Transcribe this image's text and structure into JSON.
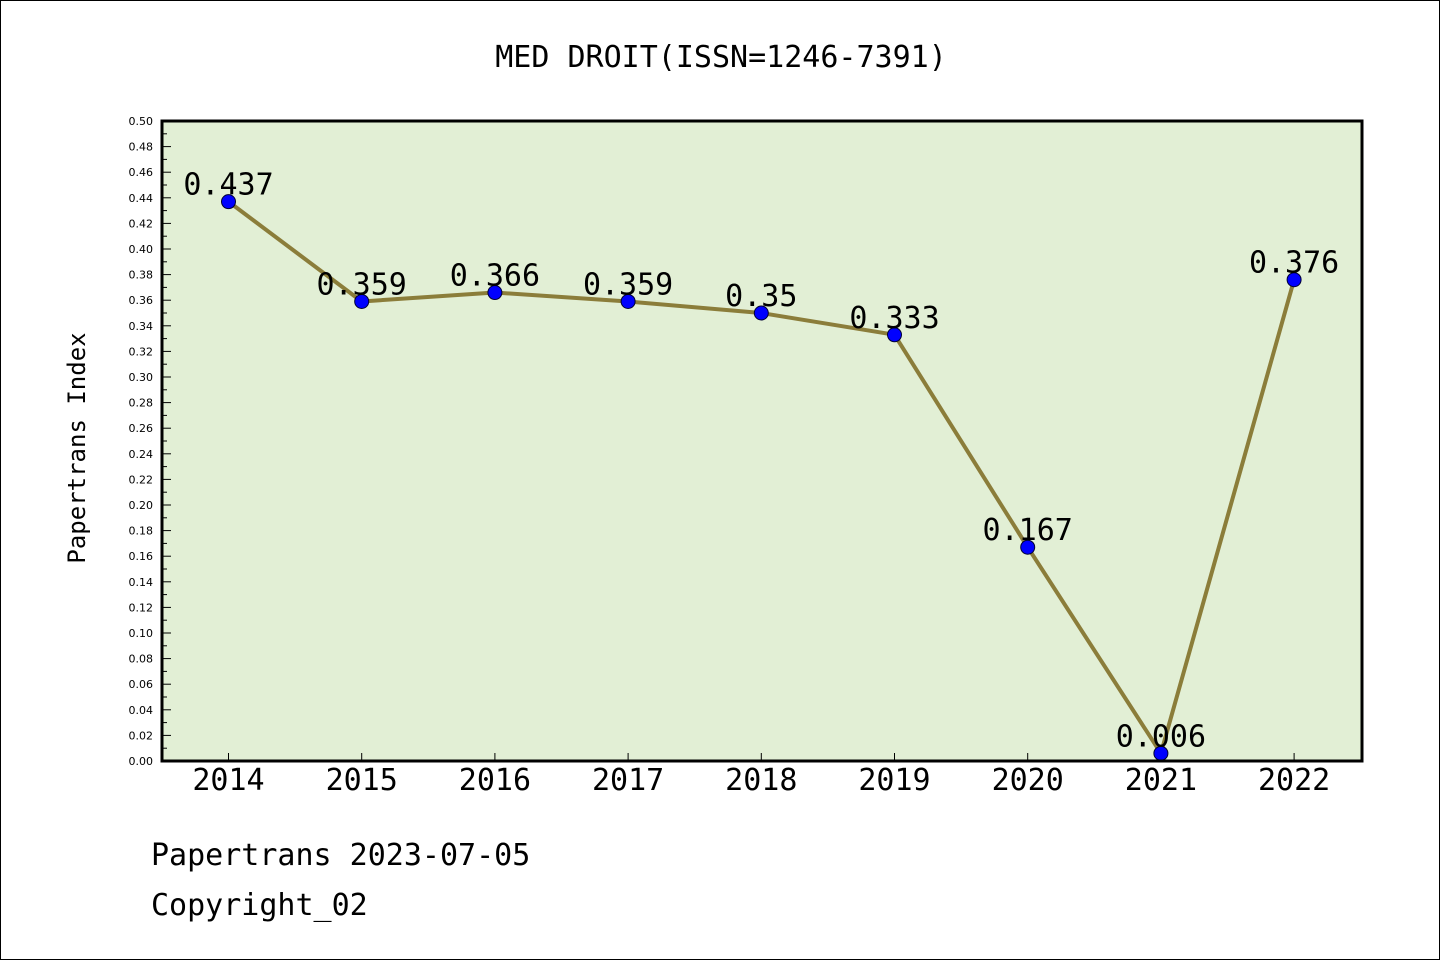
{
  "chart_data": {
    "type": "line",
    "title": "MED DROIT(ISSN=1246-7391)",
    "xlabel": "",
    "ylabel": "Papertrans Index",
    "categories": [
      "2014",
      "2015",
      "2016",
      "2017",
      "2018",
      "2019",
      "2020",
      "2021",
      "2022"
    ],
    "series": [
      {
        "values": [
          0.437,
          0.359,
          0.366,
          0.359,
          0.35,
          0.333,
          0.167,
          0.006,
          0.376
        ],
        "data_labels": [
          "0.437",
          "0.359",
          "0.366",
          "0.359",
          "0.35",
          "0.333",
          "0.167",
          "0.006",
          "0.376"
        ]
      }
    ],
    "ylim": [
      0,
      0.5
    ],
    "yticks": [
      "0.00",
      "0.02",
      "0.04",
      "0.06",
      "0.08",
      "0.10",
      "0.12",
      "0.14",
      "0.16",
      "0.18",
      "0.20",
      "0.22",
      "0.24",
      "0.26",
      "0.28",
      "0.30",
      "0.32",
      "0.34",
      "0.36",
      "0.38",
      "0.40",
      "0.42",
      "0.44",
      "0.46",
      "0.48",
      "0.50"
    ],
    "grid": false,
    "legend": "none"
  },
  "footer": {
    "line1": "Papertrans 2023-07-05",
    "line2": "Copyright_02"
  },
  "colors": {
    "plot_background": "#e2efd5",
    "line": "#8b7d3a",
    "marker": "#0000ff",
    "axis": "#000000"
  }
}
